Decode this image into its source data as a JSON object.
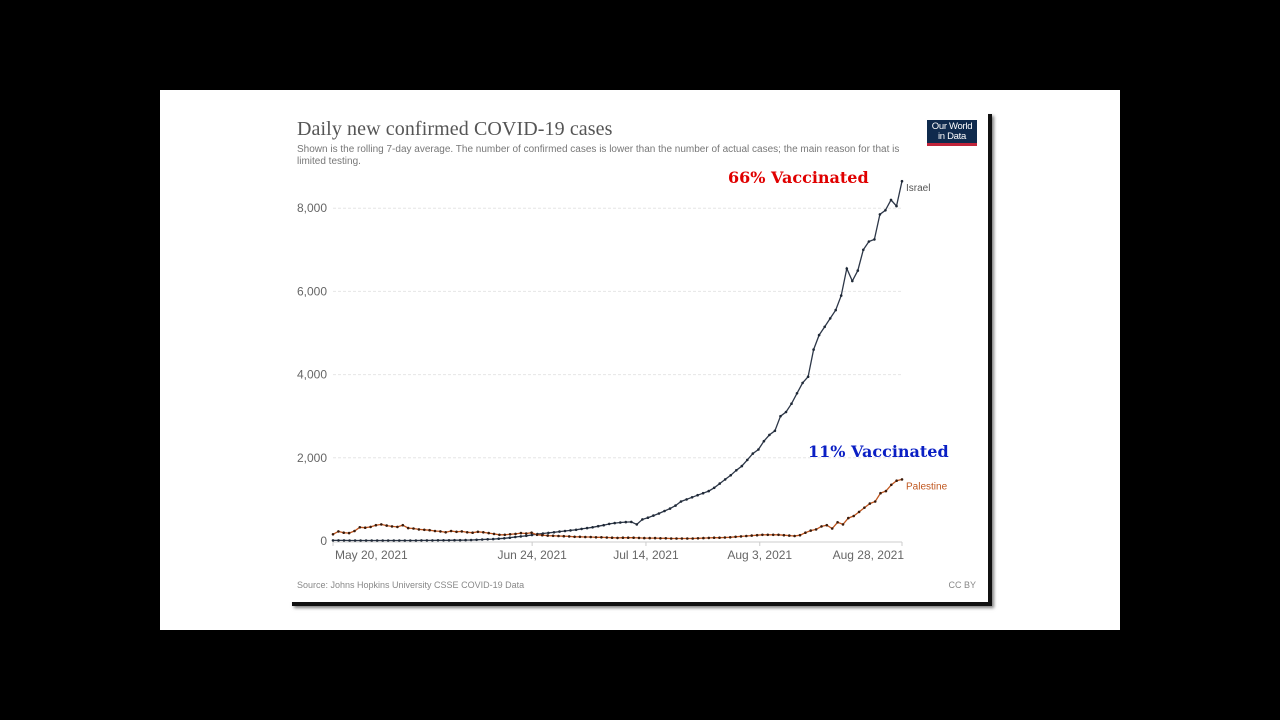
{
  "chart": {
    "title": "Daily new confirmed COVID-19 cases",
    "subtitle": "Shown is the rolling 7-day average. The number of confirmed cases is lower than the number of actual cases; the main reason for that is limited testing.",
    "logo_line1": "Our World",
    "logo_line2": "in Data",
    "source": "Source: Johns Hopkins University CSSE COVID-19 Data",
    "license": "CC BY"
  },
  "annotations": {
    "israel": {
      "text": "66% Vaccinated",
      "color": "#e00000"
    },
    "palestine": {
      "text": "11% Vaccinated",
      "color": "#0a1fc4"
    }
  },
  "colors": {
    "israel": "#2d3748",
    "palestine": "#c0561e",
    "grid": "#e6e6e6",
    "axis_text": "#666666"
  },
  "chart_data": {
    "type": "line",
    "title": "Daily new confirmed COVID-19 cases",
    "subtitle": "Shown is the rolling 7-day average. The number of confirmed cases is lower than the number of actual cases; the main reason for that is limited testing.",
    "xlabel": "",
    "ylabel": "",
    "ylim": [
      0,
      8600
    ],
    "yticks": [
      0,
      2000,
      4000,
      6000,
      8000
    ],
    "ytick_labels": [
      "0",
      "2,000",
      "4,000",
      "6,000",
      "8,000"
    ],
    "xticks": [
      "May 20, 2021",
      "Jun 24, 2021",
      "Jul 14, 2021",
      "Aug 3, 2021",
      "Aug 28, 2021"
    ],
    "xtick_day_index": [
      0,
      35,
      55,
      75,
      100
    ],
    "x_start": "May 20, 2021",
    "x_end": "Aug 28, 2021",
    "grid": true,
    "legend": "inline labels at line ends",
    "series": [
      {
        "name": "Israel",
        "annotation": "66% Vaccinated",
        "values": [
          15,
          14,
          14,
          13,
          13,
          12,
          12,
          12,
          12,
          12,
          12,
          12,
          12,
          12,
          13,
          13,
          14,
          14,
          15,
          16,
          17,
          18,
          19,
          20,
          22,
          25,
          30,
          35,
          40,
          45,
          55,
          65,
          80,
          95,
          110,
          125,
          145,
          165,
          180,
          195,
          210,
          225,
          240,
          255,
          270,
          290,
          310,
          330,
          355,
          380,
          410,
          430,
          445,
          455,
          460,
          400,
          520,
          560,
          610,
          660,
          720,
          780,
          850,
          950,
          1000,
          1050,
          1100,
          1150,
          1200,
          1280,
          1380,
          1480,
          1580,
          1700,
          1800,
          1950,
          2100,
          2200,
          2400,
          2550,
          2650,
          3000,
          3100,
          3300,
          3550,
          3800,
          3950,
          4600,
          4950,
          5150,
          5350,
          5550,
          5900,
          6550,
          6250,
          6500,
          7000,
          7200,
          7250,
          7850,
          7950,
          8200,
          8050,
          8650
        ]
      },
      {
        "name": "Palestine",
        "annotation": "11% Vaccinated",
        "values": [
          160,
          230,
          200,
          190,
          240,
          330,
          320,
          340,
          380,
          400,
          370,
          350,
          340,
          380,
          310,
          300,
          280,
          270,
          260,
          240,
          230,
          210,
          240,
          220,
          230,
          210,
          200,
          220,
          210,
          190,
          170,
          150,
          150,
          160,
          170,
          190,
          180,
          200,
          150,
          140,
          130,
          125,
          120,
          115,
          110,
          100,
          100,
          95,
          95,
          90,
          90,
          85,
          80,
          75,
          80,
          80,
          80,
          75,
          70,
          70,
          70,
          65,
          65,
          60,
          60,
          60,
          60,
          60,
          65,
          70,
          75,
          80,
          80,
          85,
          90,
          100,
          110,
          120,
          130,
          140,
          150,
          150,
          150,
          150,
          140,
          130,
          120,
          140,
          200,
          250,
          280,
          350,
          380,
          300,
          450,
          400,
          550,
          600,
          700,
          800,
          900,
          950,
          1150,
          1200,
          1350,
          1450,
          1480
        ]
      }
    ]
  }
}
